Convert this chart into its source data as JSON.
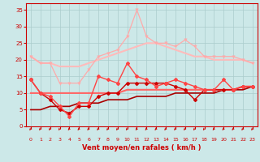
{
  "x": [
    0,
    1,
    2,
    3,
    4,
    5,
    6,
    7,
    8,
    9,
    10,
    11,
    12,
    13,
    14,
    15,
    16,
    17,
    18,
    19,
    20,
    21,
    22,
    23
  ],
  "line_top_smooth": [
    21,
    19,
    19,
    18,
    18,
    18,
    19,
    20,
    21,
    22,
    23,
    24,
    25,
    25,
    24,
    23,
    22,
    21,
    21,
    20,
    20,
    20,
    20,
    19
  ],
  "line_top_spiky": [
    21,
    19,
    19,
    13,
    13,
    13,
    17,
    21,
    22,
    23,
    27,
    35,
    27,
    25,
    25,
    24,
    26,
    24,
    21,
    21,
    21,
    21,
    20,
    19
  ],
  "line_mid_spiky": [
    14,
    10,
    9,
    6,
    3,
    7,
    7,
    15,
    14,
    13,
    19,
    15,
    14,
    12,
    13,
    14,
    13,
    12,
    11,
    11,
    14,
    11,
    12,
    12
  ],
  "line_mid_lower": [
    14,
    10,
    8,
    5,
    4,
    6,
    6,
    9,
    10,
    10,
    13,
    13,
    13,
    13,
    13,
    12,
    11,
    8,
    11,
    11,
    11,
    11,
    12,
    12
  ],
  "line_smooth_mid": [
    10,
    10,
    10,
    10,
    10,
    10,
    10,
    10,
    10,
    10,
    11,
    11,
    11,
    11,
    11,
    11,
    11,
    11,
    11,
    11,
    11,
    11,
    12,
    12
  ],
  "line_bottom": [
    5,
    5,
    6,
    6,
    6,
    7,
    7,
    7,
    8,
    8,
    8,
    9,
    9,
    9,
    9,
    10,
    10,
    10,
    10,
    10,
    11,
    11,
    11,
    12
  ],
  "bg_color": "#cce8e8",
  "grid_color": "#aacccc",
  "col_top_smooth": "#ffbbbb",
  "col_top_spiky": "#ffaaaa",
  "col_mid_spiky": "#ff4444",
  "col_mid_lower": "#cc0000",
  "col_smooth_mid": "#ff6666",
  "col_bottom": "#aa0000",
  "axis_color": "#cc0000",
  "xlabel": "Vent moyen/en rafales ( km/h )",
  "ylim": [
    0,
    37
  ],
  "yticks": [
    0,
    5,
    10,
    15,
    20,
    25,
    30,
    35
  ],
  "xlim": [
    -0.5,
    23.5
  ]
}
